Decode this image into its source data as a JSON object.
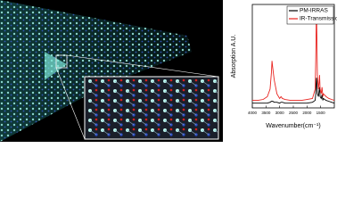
{
  "chart_data": {
    "type": "line",
    "x_label": "Wavenumber(cm⁻¹)",
    "y_label": "Absorption A.U.",
    "xlim": [
      4000,
      1000
    ],
    "xticks": [
      4000,
      3500,
      3000,
      2500,
      2000,
      1500
    ],
    "ylim": [
      0,
      1.1
    ],
    "legend": "upper-right",
    "x": [
      4000,
      3800,
      3600,
      3450,
      3350,
      3300,
      3280,
      3250,
      3200,
      3100,
      3000,
      2950,
      2900,
      2800,
      2600,
      2400,
      2200,
      2000,
      1800,
      1700,
      1680,
      1660,
      1650,
      1640,
      1620,
      1580,
      1550,
      1540,
      1520,
      1480,
      1450,
      1420,
      1400,
      1300,
      1200,
      1100,
      1000
    ],
    "series": [
      {
        "name": "PM-IRRAS",
        "color": "#000000",
        "values": [
          0.05,
          0.05,
          0.05,
          0.05,
          0.06,
          0.07,
          0.07,
          0.07,
          0.06,
          0.06,
          0.05,
          0.06,
          0.06,
          0.05,
          0.05,
          0.05,
          0.05,
          0.05,
          0.06,
          0.08,
          0.15,
          0.3,
          0.32,
          0.28,
          0.15,
          0.12,
          0.2,
          0.22,
          0.12,
          0.1,
          0.14,
          0.08,
          0.1,
          0.08,
          0.07,
          0.06,
          0.05
        ]
      },
      {
        "name": "IR-Transmission",
        "color": "#e8231f",
        "values": [
          0.08,
          0.08,
          0.09,
          0.12,
          0.2,
          0.38,
          0.5,
          0.42,
          0.3,
          0.15,
          0.1,
          0.12,
          0.1,
          0.09,
          0.08,
          0.08,
          0.08,
          0.09,
          0.1,
          0.2,
          0.5,
          0.95,
          1.0,
          0.8,
          0.35,
          0.2,
          0.3,
          0.35,
          0.2,
          0.15,
          0.22,
          0.12,
          0.15,
          0.12,
          0.1,
          0.09,
          0.08
        ]
      }
    ]
  }
}
